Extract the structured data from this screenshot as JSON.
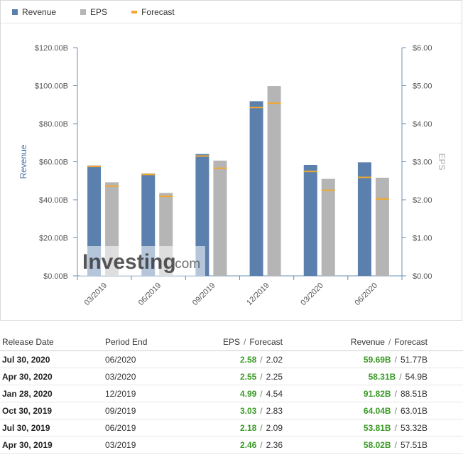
{
  "legend": {
    "revenue": "Revenue",
    "eps": "EPS",
    "forecast": "Forecast"
  },
  "colors": {
    "revenue": "#5b80ad",
    "eps": "#b5b5b5",
    "forecast": "#f0a830",
    "positive": "#3a9b26"
  },
  "watermark": {
    "text": "Investing",
    "suffix": ".com"
  },
  "chart_data": {
    "type": "bar",
    "categories": [
      "03/2019",
      "06/2019",
      "09/2019",
      "12/2019",
      "03/2020",
      "06/2020"
    ],
    "y_left": {
      "label": "Revenue",
      "lim": [
        0,
        120
      ],
      "ticks": [
        "$0.00B",
        "$20.00B",
        "$40.00B",
        "$60.00B",
        "$80.00B",
        "$100.00B",
        "$120.00B"
      ]
    },
    "y_right": {
      "label": "EPS",
      "lim": [
        0,
        6
      ],
      "ticks": [
        "$0.00",
        "$1.00",
        "$2.00",
        "$3.00",
        "$4.00",
        "$5.00",
        "$6.00"
      ]
    },
    "series": [
      {
        "name": "Revenue",
        "axis": "left",
        "values": [
          58.02,
          53.81,
          64.04,
          91.82,
          58.31,
          59.69
        ],
        "forecast": [
          57.51,
          53.32,
          63.01,
          88.51,
          54.9,
          51.77
        ]
      },
      {
        "name": "EPS",
        "axis": "right",
        "values": [
          2.46,
          2.18,
          3.03,
          4.99,
          2.55,
          2.58
        ],
        "forecast": [
          2.36,
          2.09,
          2.83,
          4.54,
          2.25,
          2.02
        ]
      }
    ],
    "grid": false,
    "legend_position": "top-left"
  },
  "table": {
    "headers": {
      "release_date": "Release Date",
      "period_end": "Period End",
      "eps": "EPS",
      "eps_forecast": "Forecast",
      "revenue": "Revenue",
      "revenue_forecast": "Forecast",
      "separator": "/"
    },
    "rows": [
      {
        "release_date": "Jul 30, 2020",
        "period_end": "06/2020",
        "eps": "2.58",
        "eps_forecast": "2.02",
        "revenue": "59.69B",
        "revenue_forecast": "51.77B"
      },
      {
        "release_date": "Apr 30, 2020",
        "period_end": "03/2020",
        "eps": "2.55",
        "eps_forecast": "2.25",
        "revenue": "58.31B",
        "revenue_forecast": "54.9B"
      },
      {
        "release_date": "Jan 28, 2020",
        "period_end": "12/2019",
        "eps": "4.99",
        "eps_forecast": "4.54",
        "revenue": "91.82B",
        "revenue_forecast": "88.51B"
      },
      {
        "release_date": "Oct 30, 2019",
        "period_end": "09/2019",
        "eps": "3.03",
        "eps_forecast": "2.83",
        "revenue": "64.04B",
        "revenue_forecast": "63.01B"
      },
      {
        "release_date": "Jul 30, 2019",
        "period_end": "06/2019",
        "eps": "2.18",
        "eps_forecast": "2.09",
        "revenue": "53.81B",
        "revenue_forecast": "53.32B"
      },
      {
        "release_date": "Apr 30, 2019",
        "period_end": "03/2019",
        "eps": "2.46",
        "eps_forecast": "2.36",
        "revenue": "58.02B",
        "revenue_forecast": "57.51B"
      }
    ]
  }
}
